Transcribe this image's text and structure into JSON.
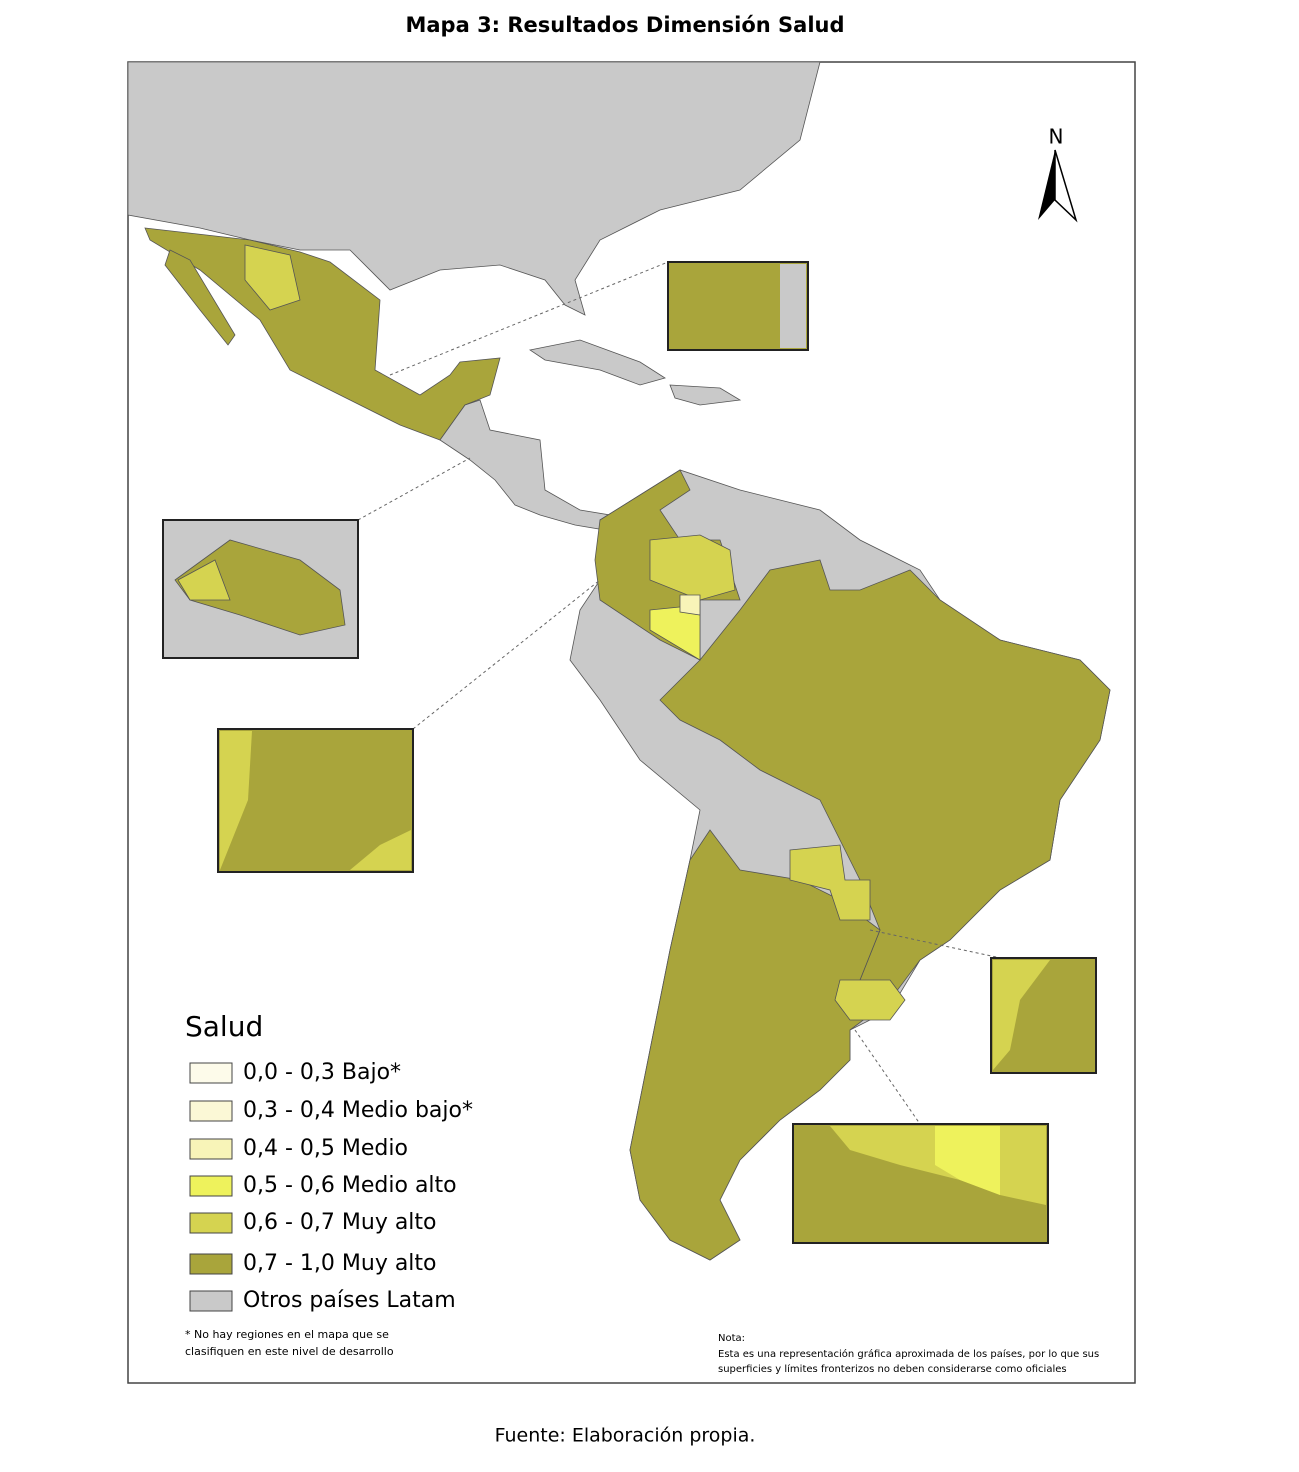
{
  "title": "Mapa 3: Resultados Dimensión Salud",
  "north": "N",
  "legend": {
    "title": "Salud",
    "items": [
      {
        "label": "0,0 - 0,3 Bajo*",
        "color": "#fdfbea"
      },
      {
        "label": "0,3 - 0,4 Medio bajo*",
        "color": "#fbf8d6"
      },
      {
        "label": "0,4 - 0,5 Medio",
        "color": "#f8f4b8"
      },
      {
        "label": "0,5 - 0,6 Medio alto",
        "color": "#eef25c"
      },
      {
        "label": "0,6 - 0,7 Muy alto",
        "color": "#d5d350"
      },
      {
        "label": "0,7 - 1,0 Muy alto",
        "color": "#a9a53b"
      },
      {
        "label": "Otros países Latam",
        "color": "#c9c9c9"
      }
    ]
  },
  "footnote": [
    "* No hay regiones en el mapa que se",
    "clasifiquen en este nivel de desarrollo"
  ],
  "note": {
    "title": "Nota:",
    "lines": [
      "Esta es una representación gráfica aproximada de los países, por lo que sus",
      "superficies y límites fronterizos no deben considerarse como oficiales"
    ]
  },
  "source": "Fuente: Elaboración propia."
}
